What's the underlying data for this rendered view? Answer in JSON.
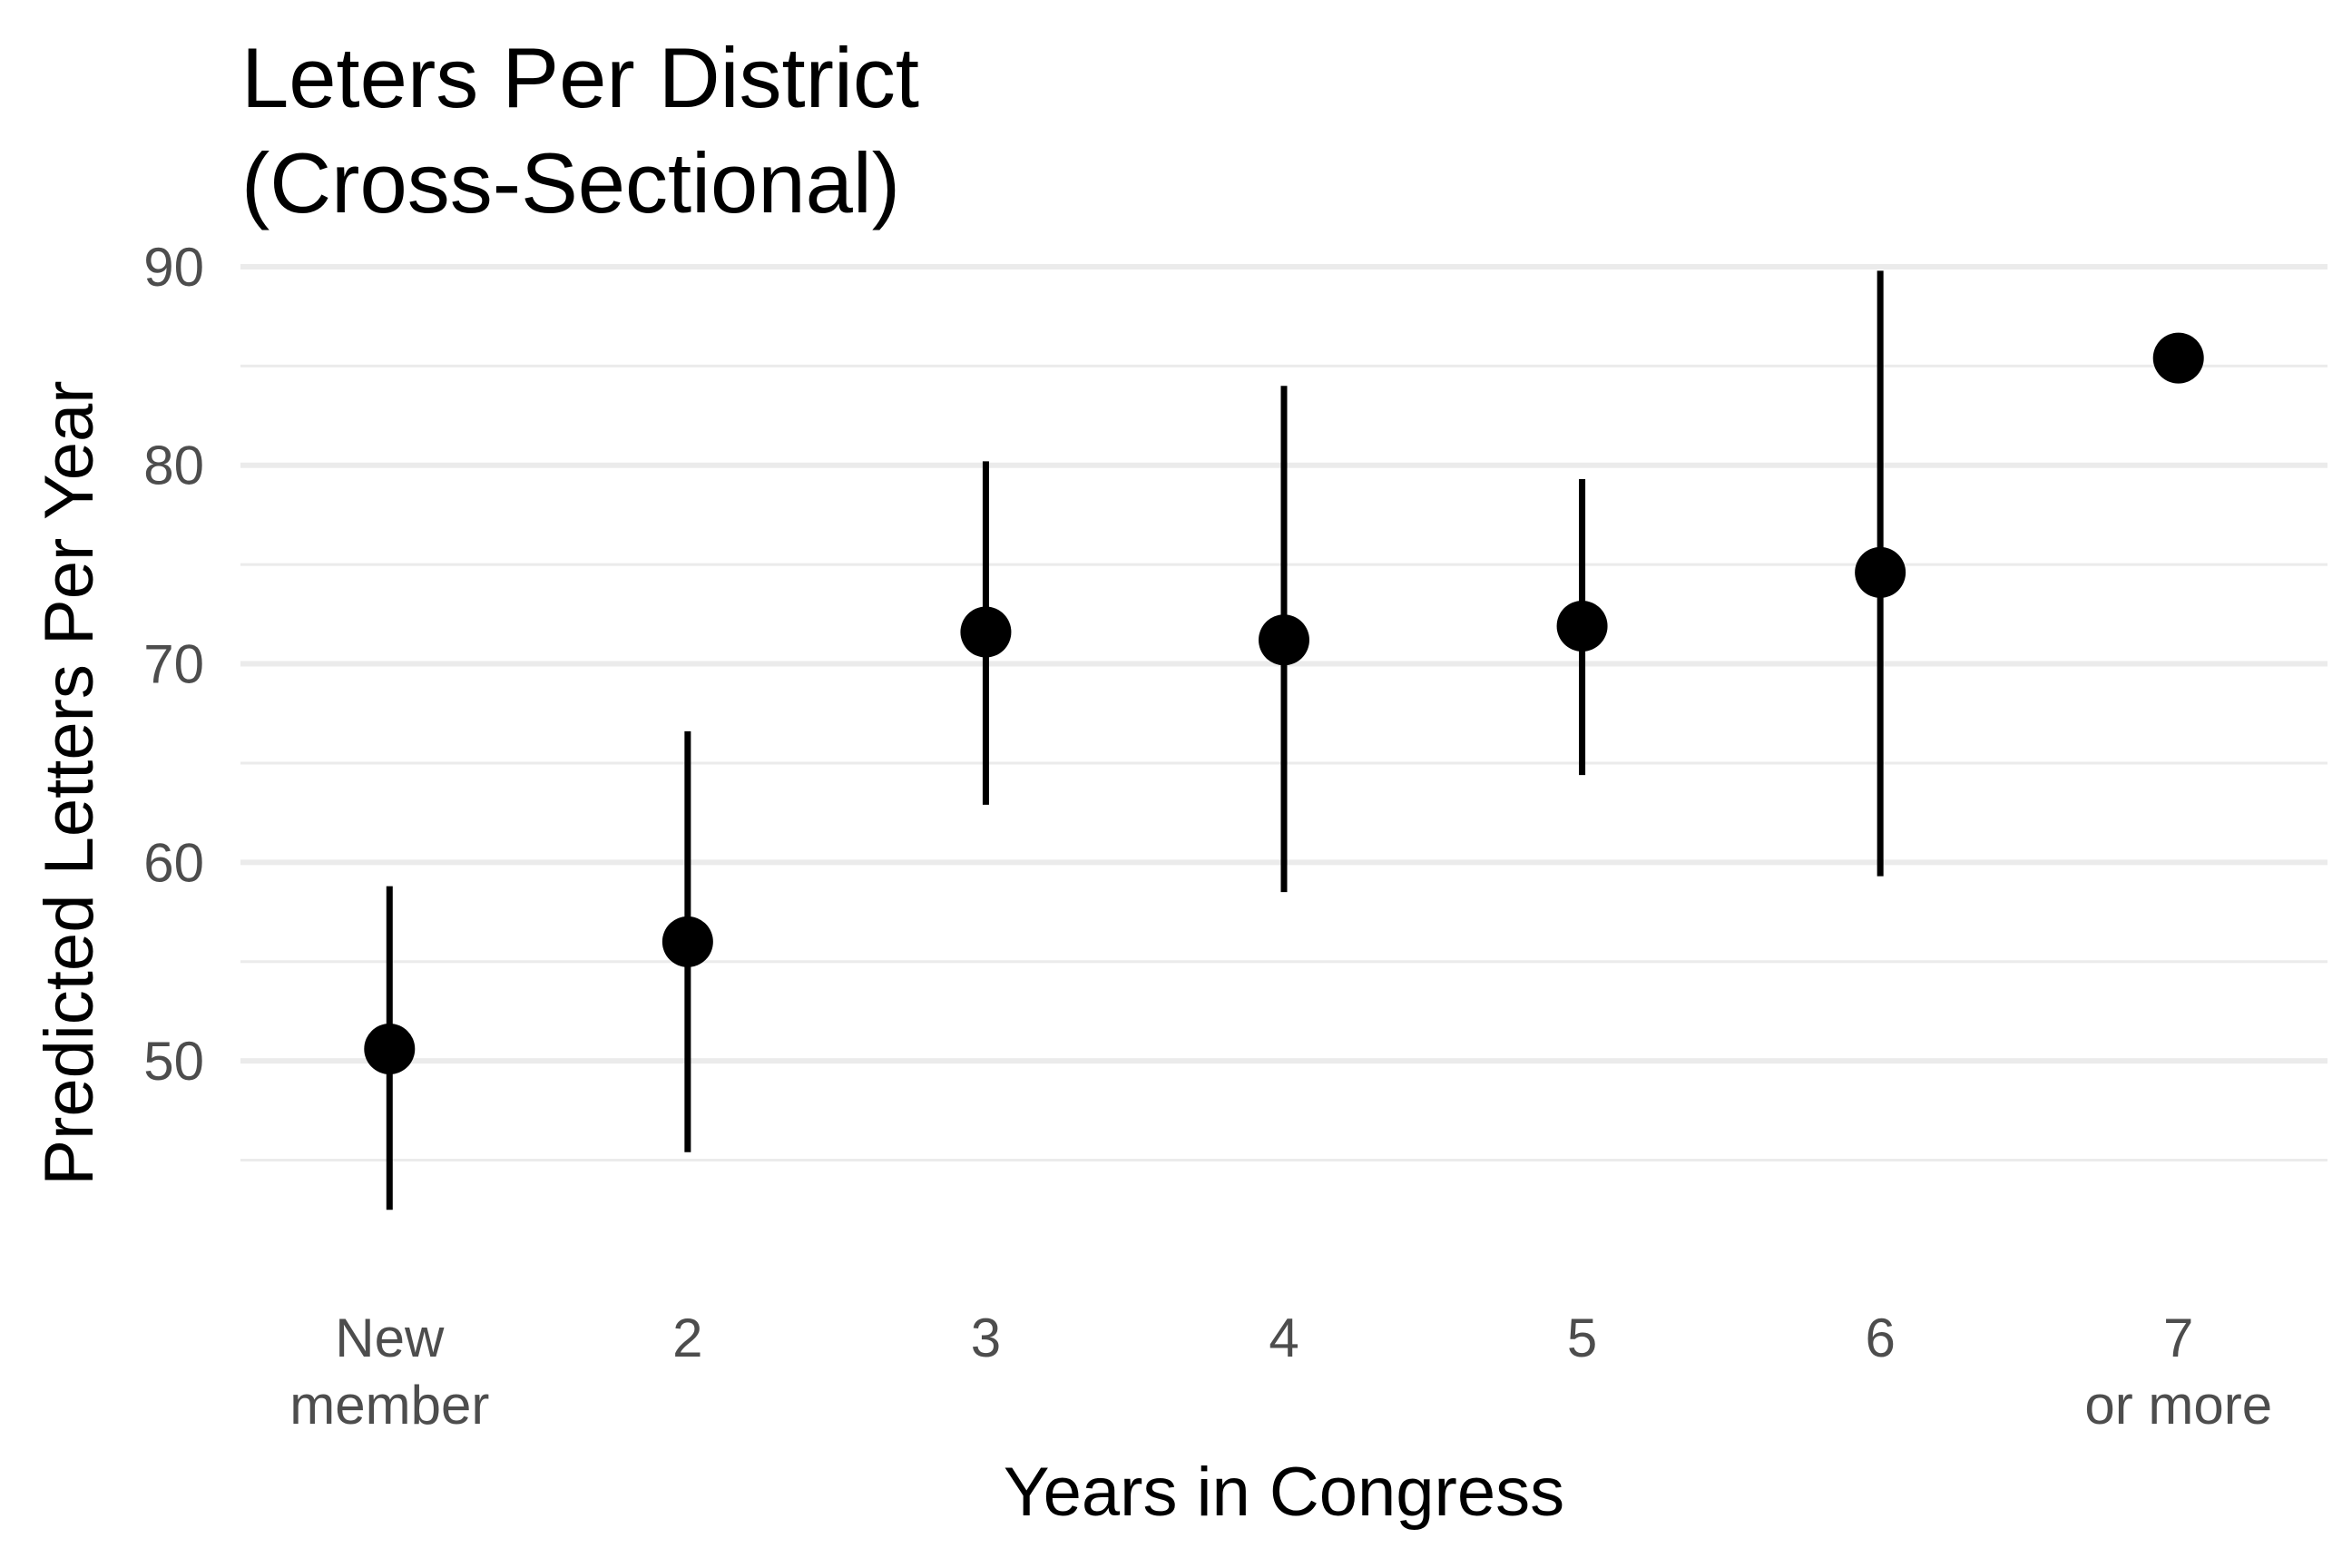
{
  "chart_data": {
    "type": "scatter",
    "title": [
      "Leters Per District",
      "(Cross-Sectional)"
    ],
    "xlabel": "Years in Congress",
    "ylabel": "Predicted Letters Per Year",
    "categories": [
      [
        "New",
        "member"
      ],
      [
        "2"
      ],
      [
        "3"
      ],
      [
        "4"
      ],
      [
        "5"
      ],
      [
        "6"
      ],
      [
        "7",
        "or more"
      ]
    ],
    "points": [
      {
        "estimate": 50.6,
        "lower": 42.5,
        "upper": 58.8
      },
      {
        "estimate": 56.0,
        "lower": 45.4,
        "upper": 66.6
      },
      {
        "estimate": 71.6,
        "lower": 62.9,
        "upper": 80.2
      },
      {
        "estimate": 71.2,
        "lower": 58.5,
        "upper": 84.0
      },
      {
        "estimate": 71.9,
        "lower": 64.4,
        "upper": 79.3
      },
      {
        "estimate": 74.6,
        "lower": 59.3,
        "upper": 89.8
      },
      {
        "estimate": 85.4,
        "lower": null,
        "upper": null
      }
    ],
    "y_ticks": [
      50,
      60,
      70,
      80,
      90
    ],
    "ylim": [
      40.5,
      90.5
    ],
    "grid": true,
    "colors": {
      "point": "#000000",
      "grid_major": "#ebebeb",
      "grid_minor": "#ebebeb",
      "tick_text": "#4d4d4d"
    }
  }
}
